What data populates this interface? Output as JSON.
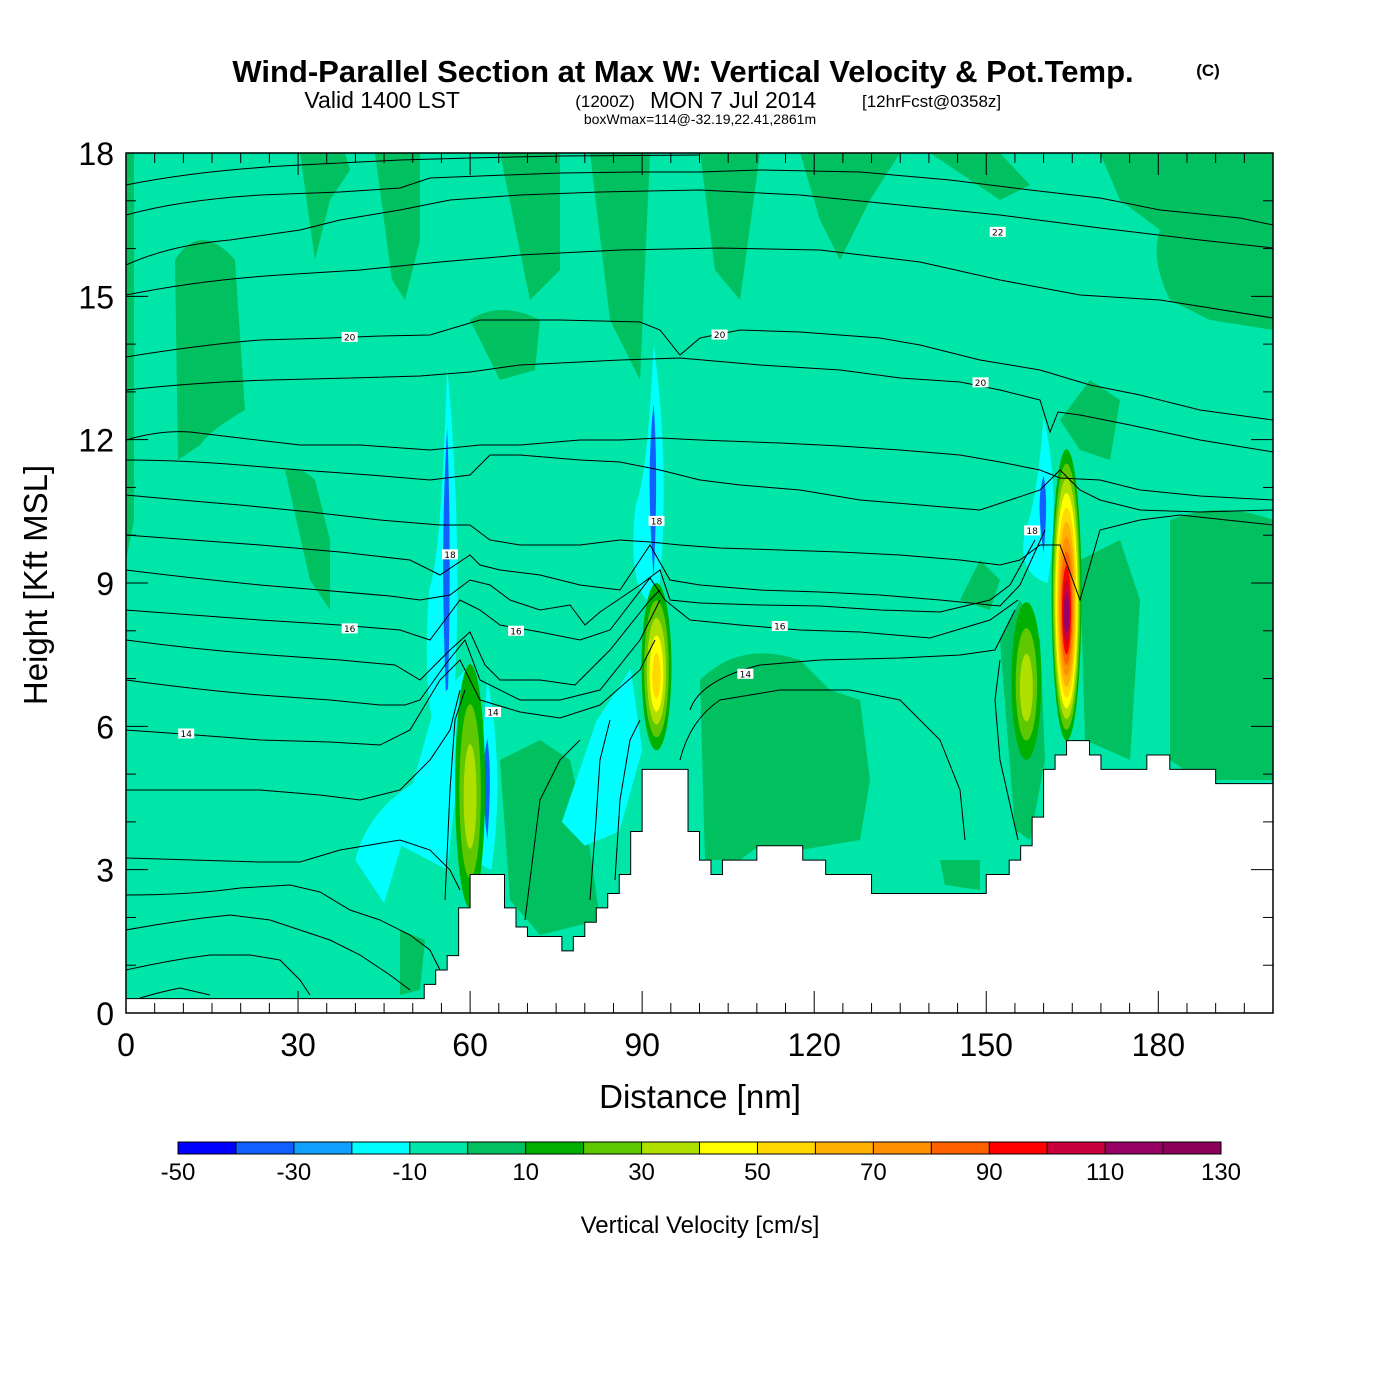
{
  "header": {
    "title": "Wind-Parallel Section at Max W: Vertical Velocity & Pot.Temp.",
    "copyright": "(C)",
    "valid_prefix": "Valid 1400 LST",
    "valid_zulu": "(1200Z)",
    "valid_date": "MON 7 Jul 2014",
    "forecast": "[12hrFcst@0358z]",
    "box_info": "boxWmax=114@-32.19,22.41,2861m"
  },
  "chart_data": {
    "type": "heatmap",
    "xlabel": "Distance [nm]",
    "ylabel": "Height [Kft MSL]",
    "xlim": [
      0,
      200
    ],
    "ylim": [
      0,
      18
    ],
    "xticks": [
      "0",
      "30",
      "60",
      "90",
      "120",
      "150",
      "180"
    ],
    "xtick_values": [
      0,
      30,
      60,
      90,
      120,
      150,
      180
    ],
    "yticks": [
      "0",
      "3",
      "6",
      "9",
      "12",
      "15",
      "18"
    ],
    "ytick_values": [
      0,
      3,
      6,
      9,
      12,
      15,
      18
    ],
    "colorbar": {
      "label": "Vertical Velocity [cm/s]",
      "tick_labels": [
        "-50",
        "-30",
        "-10",
        "10",
        "30",
        "50",
        "70",
        "90",
        "110",
        "130"
      ],
      "levels": [
        -50,
        -40,
        -30,
        -20,
        -10,
        0,
        10,
        20,
        30,
        40,
        50,
        60,
        70,
        80,
        90,
        100,
        110,
        120,
        130
      ],
      "colors": [
        "#0000ff",
        "#1060ff",
        "#10a0ff",
        "#00ffff",
        "#00e6a8",
        "#00c060",
        "#00b000",
        "#60c800",
        "#b0e000",
        "#ffff00",
        "#ffd800",
        "#ffb000",
        "#ff9000",
        "#ff6000",
        "#ff0000",
        "#c8003c",
        "#960064",
        "#8c005a"
      ]
    },
    "updrafts": [
      {
        "x": 60,
        "bottom": 2.2,
        "top": 7.3,
        "max_level": 30
      },
      {
        "x": 92.5,
        "bottom": 5.5,
        "top": 9.0,
        "max_level": 50
      },
      {
        "x": 157,
        "bottom": 5.3,
        "top": 8.6,
        "max_level": 30
      },
      {
        "x": 164,
        "bottom": 5.7,
        "top": 11.8,
        "max_level": 110
      }
    ],
    "downdrafts": [
      {
        "x": 56,
        "bottom": 5.5,
        "top": 13.5
      },
      {
        "x": 63,
        "bottom": 3.0,
        "top": 7.0
      },
      {
        "x": 92,
        "bottom": 8.5,
        "top": 14.0
      },
      {
        "x": 160,
        "bottom": 9.0,
        "top": 12.5
      }
    ],
    "terrain": {
      "distance_nm": [
        0,
        50,
        52,
        54,
        56,
        58,
        60,
        62,
        66,
        68,
        70,
        72,
        74,
        76,
        78,
        80,
        82,
        84,
        86,
        88,
        90,
        92,
        94,
        96,
        98,
        100,
        102,
        104,
        106,
        110,
        114,
        118,
        122,
        126,
        130,
        134,
        138,
        142,
        146,
        150,
        154,
        156,
        158,
        160,
        162,
        164,
        166,
        168,
        170,
        174,
        178,
        182,
        186,
        190,
        194,
        196,
        200
      ],
      "height_kft": [
        0.3,
        0.3,
        0.6,
        0.9,
        1.2,
        2.2,
        2.9,
        2.9,
        2.2,
        1.8,
        1.6,
        1.6,
        1.6,
        1.3,
        1.6,
        1.9,
        2.2,
        2.5,
        2.9,
        3.8,
        5.1,
        5.1,
        5.1,
        5.1,
        3.8,
        3.2,
        2.9,
        3.2,
        3.2,
        3.5,
        3.5,
        3.2,
        2.9,
        2.9,
        2.5,
        2.5,
        2.5,
        2.5,
        2.5,
        2.9,
        3.2,
        3.5,
        4.1,
        5.1,
        5.4,
        5.7,
        5.7,
        5.4,
        5.1,
        5.1,
        5.4,
        5.1,
        5.1,
        4.8,
        4.8,
        4.8,
        4.8
      ]
    },
    "theta_contours": [
      {
        "label": "14",
        "label_x": 10.5,
        "label_y": 5.85
      },
      {
        "label": "14",
        "label_x": 64,
        "label_y": 6.3
      },
      {
        "label": "14",
        "label_x": 108,
        "label_y": 7.1
      },
      {
        "label": "16",
        "label_x": 39,
        "label_y": 8.05
      },
      {
        "label": "16",
        "label_x": 68,
        "label_y": 8.0
      },
      {
        "label": "16",
        "label_x": 114,
        "label_y": 8.1
      },
      {
        "label": "18",
        "label_x": 56.5,
        "label_y": 9.6
      },
      {
        "label": "18",
        "label_x": 92.5,
        "label_y": 10.3
      },
      {
        "label": "18",
        "label_x": 158,
        "label_y": 10.1
      },
      {
        "label": "20",
        "label_x": 39,
        "label_y": 14.15
      },
      {
        "label": "20",
        "label_x": 103.5,
        "label_y": 14.2
      },
      {
        "label": "20",
        "label_x": 149,
        "label_y": 13.2
      },
      {
        "label": "22",
        "label_x": 152,
        "label_y": 16.35
      }
    ]
  }
}
